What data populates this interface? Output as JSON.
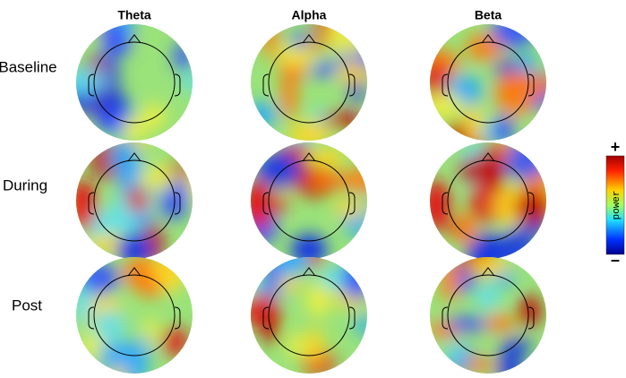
{
  "columns": [
    "Theta",
    "Alpha",
    "Beta"
  ],
  "rows": [
    "Baseline",
    "During",
    "Post"
  ],
  "colorbar": {
    "max_label": "+",
    "label": "power",
    "min_label": "–"
  }
}
